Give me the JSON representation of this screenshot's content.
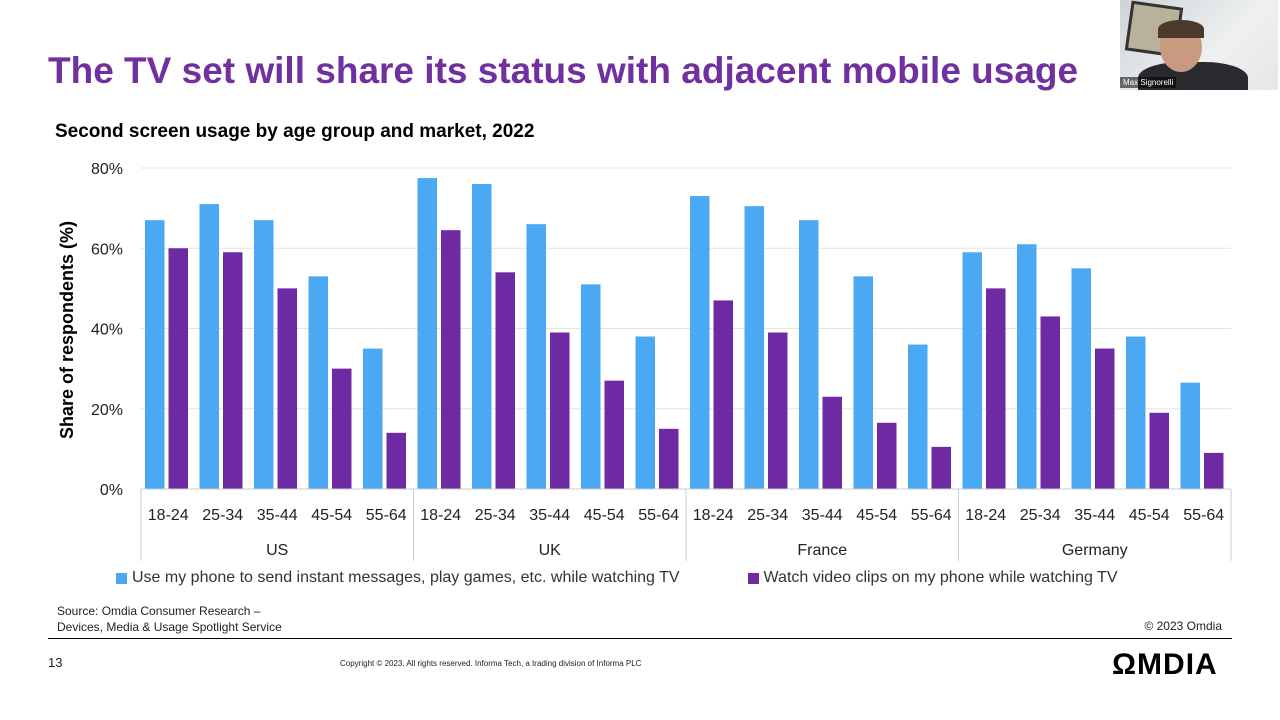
{
  "slide": {
    "title": "The TV set will share its status with adjacent mobile usage",
    "page_number": "13",
    "source_line1": "Source: Omdia Consumer Research –",
    "source_line2": "Devices, Media & Usage Spotlight Service",
    "copyright_chart": "© 2023 Omdia",
    "copyright_footer": "Copyright © 2023. All rights reserved. Informa Tech, a trading division of Informa PLC",
    "logo": "OMDIA"
  },
  "webcam": {
    "participant_name": "Max Signorelli"
  },
  "chart_data": {
    "type": "bar",
    "title": "Second screen usage by age group and market, 2022",
    "ylabel": "Share of respondents (%)",
    "xlabel": "",
    "ylim": [
      0,
      80
    ],
    "yticks": [
      "0%",
      "20%",
      "40%",
      "60%",
      "80%"
    ],
    "grid": true,
    "legend_position": "bottom",
    "groups": [
      "US",
      "UK",
      "France",
      "Germany"
    ],
    "categories": [
      "18-24",
      "25-34",
      "35-44",
      "45-54",
      "55-64"
    ],
    "series": [
      {
        "name": "Use my phone to send instant messages, play games, etc. while watching TV",
        "color": "#4BA9F3",
        "values": [
          [
            67,
            71,
            67,
            53,
            35
          ],
          [
            77.5,
            76,
            66,
            51,
            38
          ],
          [
            73,
            70.5,
            67,
            53,
            36
          ],
          [
            59,
            61,
            55,
            38,
            26.5
          ]
        ]
      },
      {
        "name": "Watch video clips on my phone while watching TV",
        "color": "#6E2AA3",
        "values": [
          [
            60,
            59,
            50,
            30,
            14
          ],
          [
            64.5,
            54,
            39,
            27,
            15
          ],
          [
            47,
            39,
            23,
            16.5,
            10.5
          ],
          [
            50,
            43,
            35,
            19,
            9
          ]
        ]
      }
    ]
  }
}
